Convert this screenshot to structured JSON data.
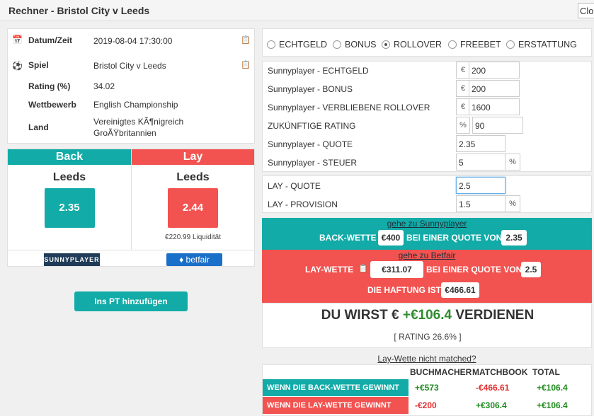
{
  "window": {
    "title": "Rechner - Bristol City v Leeds",
    "close_label": "Close"
  },
  "info": [
    {
      "label": "Datum/Zeit",
      "value": "2019-08-04 17:30:00"
    },
    {
      "label": "Spiel",
      "value": "Bristol City v Leeds"
    },
    {
      "label": "Rating (%)",
      "value": "34.02"
    },
    {
      "label": "Wettbewerb",
      "value": "English Championship"
    },
    {
      "label": "Land",
      "value": "Vereinigtes KÃ¶nigreich",
      "value2": "GroÃŸbritannien"
    }
  ],
  "back": {
    "header": "Back",
    "team": "Leeds",
    "odds": "2.35",
    "logo": "SUNNYPLAYER"
  },
  "lay": {
    "header": "Lay",
    "team": "Leeds",
    "odds": "2.44",
    "liquidity": "€220.99 Liquidität",
    "logo": "betfair"
  },
  "add_button": "Ins PT hinzufügen",
  "bet_types": [
    {
      "label": "ECHTGELD",
      "checked": false
    },
    {
      "label": "BONUS",
      "checked": false
    },
    {
      "label": "ROLLOVER",
      "checked": true
    },
    {
      "label": "FREEBET",
      "checked": false
    },
    {
      "label": "ERSTATTUNG",
      "checked": false
    }
  ],
  "form": {
    "echtgeld": {
      "label": "Sunnyplayer - ECHTGELD",
      "prefix": "€",
      "value": "200"
    },
    "bonus": {
      "label": "Sunnyplayer - BONUS",
      "prefix": "€",
      "value": "200"
    },
    "rollover": {
      "label": "Sunnyplayer - VERBLIEBENE ROLLOVER",
      "prefix": "€",
      "value": "1600"
    },
    "rating": {
      "label": "ZUKÜNFTIGE RATING",
      "prefix": "%",
      "value": "90"
    },
    "quote": {
      "label": "Sunnyplayer - QUOTE",
      "value": "2.35"
    },
    "steuer": {
      "label": "Sunnyplayer - STEUER",
      "value": "5",
      "suffix": "%"
    },
    "lay_quote": {
      "label": "LAY - QUOTE",
      "value": "2.5"
    },
    "lay_provision": {
      "label": "LAY - PROVISION",
      "value": "1.5",
      "suffix": "%"
    }
  },
  "back_bet": {
    "link": "gehe zu Sunnyplayer",
    "label": "BACK-WETTE",
    "stake": "€400",
    "at_odds_label": "BEI EINER QUOTE VON",
    "odds": "2.35"
  },
  "lay_bet": {
    "link": "gehe zu Betfair",
    "label": "LAY-WETTE",
    "stake": "€311.07",
    "at_odds_label": "BEI EINER QUOTE VON",
    "odds": "2.5",
    "liability_label": "DIE HAFTUNG IST",
    "liability": "€466.61"
  },
  "result": {
    "prefix": "DU WIRST €",
    "profit": "+€106.4",
    "suffix": "VERDIENEN",
    "rating": "[ RATING 26.6% ]"
  },
  "not_matched": "Lay-Wette nicht matched?",
  "table": {
    "headers": [
      "BUCHMACHER",
      "MATCHBOOK",
      "TOTAL"
    ],
    "rows": [
      {
        "label": "WENN DIE BACK-WETTE GEWINNT",
        "values": [
          "+€573",
          "-€466.61",
          "+€106.4"
        ]
      },
      {
        "label": "WENN DIE LAY-WETTE GEWINNT",
        "values": [
          "-€200",
          "+€306.4",
          "+€106.4"
        ]
      }
    ]
  },
  "colors": {
    "back": "#12aba7",
    "lay": "#f25350",
    "profit": "#2e8b2e"
  }
}
